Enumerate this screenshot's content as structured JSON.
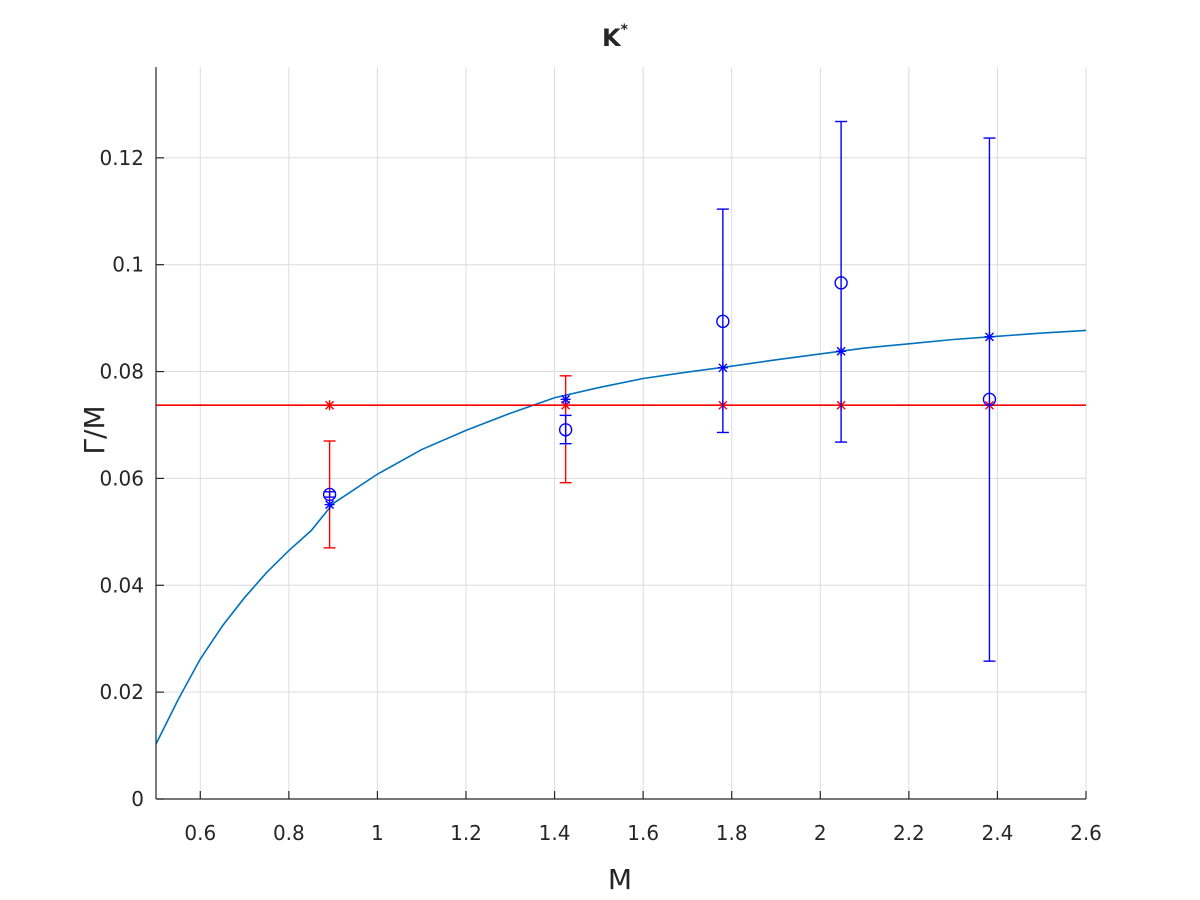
{
  "chart_data": {
    "type": "scatter",
    "title": "K",
    "title_superscript": "*",
    "xlabel": "M",
    "ylabel": "Γ/M",
    "xlim": [
      0.5,
      2.6
    ],
    "ylim": [
      0,
      0.137
    ],
    "x_ticks": [
      0.6,
      0.8,
      1,
      1.2,
      1.4,
      1.6,
      1.8,
      2,
      2.2,
      2.4,
      2.6
    ],
    "x_tick_labels": [
      "0.6",
      "0.8",
      "1",
      "1.2",
      "1.4",
      "1.6",
      "1.8",
      "2",
      "2.2",
      "2.4",
      "2.6"
    ],
    "y_ticks": [
      0,
      0.02,
      0.04,
      0.06,
      0.08,
      0.1,
      0.12
    ],
    "y_tick_labels": [
      "0",
      "0.02",
      "0.04",
      "0.06",
      "0.08",
      "0.1",
      "0.12"
    ],
    "grid": true,
    "colors": {
      "fit": "#0072BD",
      "blue": "#0000FF",
      "red": "#FF0000",
      "grid": "#dcdcdc",
      "axis": "#262626"
    },
    "series": [
      {
        "kind": "curve",
        "color": "#0072BD",
        "points": [
          [
            0.5,
            0.0103
          ],
          [
            0.55,
            0.0186
          ],
          [
            0.6,
            0.0262
          ],
          [
            0.65,
            0.0324
          ],
          [
            0.7,
            0.0377
          ],
          [
            0.75,
            0.0424
          ],
          [
            0.8,
            0.0465
          ],
          [
            0.85,
            0.0502
          ],
          [
            0.9,
            0.0553
          ],
          [
            1.0,
            0.0608
          ],
          [
            1.1,
            0.0654
          ],
          [
            1.2,
            0.069
          ],
          [
            1.3,
            0.0722
          ],
          [
            1.4,
            0.0751
          ],
          [
            1.5,
            0.077
          ],
          [
            1.6,
            0.0787
          ],
          [
            1.7,
            0.0799
          ],
          [
            1.8,
            0.081
          ],
          [
            1.9,
            0.0822
          ],
          [
            2.0,
            0.0833
          ],
          [
            2.1,
            0.0844
          ],
          [
            2.2,
            0.0852
          ],
          [
            2.3,
            0.086
          ],
          [
            2.4,
            0.0866
          ],
          [
            2.5,
            0.0872
          ],
          [
            2.6,
            0.0877
          ]
        ]
      },
      {
        "kind": "hline",
        "color": "#FF0000",
        "y": 0.0737
      },
      {
        "kind": "red-errorbars",
        "color": "#FF0000",
        "points": [
          {
            "x": 0.892,
            "ylo": 0.047,
            "yhi": 0.067
          },
          {
            "x": 1.425,
            "ylo": 0.0592,
            "yhi": 0.0792
          }
        ]
      },
      {
        "kind": "red-star-markers",
        "color": "#FF0000",
        "points": [
          [
            0.892,
            0.0737
          ],
          [
            1.425,
            0.0737
          ],
          [
            1.78,
            0.0737
          ],
          [
            2.047,
            0.0737
          ],
          [
            2.382,
            0.0737
          ]
        ]
      },
      {
        "kind": "blue-errorbars",
        "color": "#0000FF",
        "points": [
          {
            "x": 0.892,
            "ylo": 0.0565,
            "yhi": 0.0575
          },
          {
            "x": 1.425,
            "ylo": 0.0665,
            "yhi": 0.0718
          },
          {
            "x": 1.78,
            "ylo": 0.0686,
            "yhi": 0.1104
          },
          {
            "x": 2.047,
            "ylo": 0.0668,
            "yhi": 0.1268
          },
          {
            "x": 2.382,
            "ylo": 0.0258,
            "yhi": 0.1237
          }
        ]
      },
      {
        "kind": "blue-circle-markers",
        "color": "#0000FF",
        "points": [
          [
            0.892,
            0.057
          ],
          [
            1.425,
            0.0691
          ],
          [
            1.78,
            0.0894
          ],
          [
            2.047,
            0.0966
          ],
          [
            2.382,
            0.0748
          ]
        ]
      },
      {
        "kind": "blue-star-markers",
        "color": "#0000FF",
        "points": [
          [
            0.892,
            0.0551
          ],
          [
            1.425,
            0.0748
          ],
          [
            1.78,
            0.0807
          ],
          [
            2.047,
            0.0838
          ],
          [
            2.382,
            0.0865
          ]
        ]
      }
    ]
  }
}
